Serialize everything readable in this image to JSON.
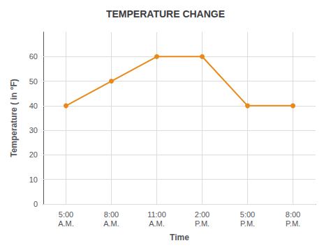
{
  "chart_data": {
    "type": "line",
    "title": "TEMPERATURE CHANGE",
    "xlabel": "Time",
    "ylabel": "Temperature ( in °F)",
    "categories": [
      "5:00\nA.M.",
      "8:00\nA.M.",
      "11:00\nA.M.",
      "2:00\nP.M.",
      "5:00\nP.M.",
      "8:00\nP.M."
    ],
    "values": [
      40,
      50,
      60,
      60,
      40,
      40
    ],
    "color": "#E8891A",
    "marker": "circle",
    "ylim": [
      0,
      70
    ],
    "yticks": [
      0,
      10,
      20,
      30,
      40,
      50,
      60
    ],
    "grid": true
  }
}
